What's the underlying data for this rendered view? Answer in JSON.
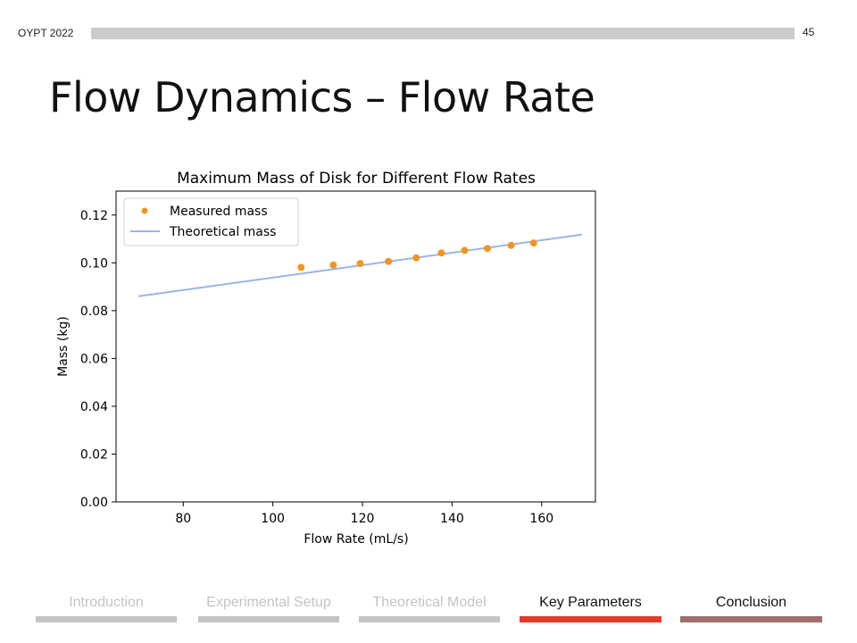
{
  "header": {
    "org": "OYPT 2022",
    "slide_number": "45"
  },
  "title": "Flow Dynamics – Flow Rate",
  "chart_data": {
    "type": "scatter",
    "title": "Maximum Mass of Disk for Different Flow Rates",
    "xlabel": "Flow Rate (mL/s)",
    "ylabel": "Mass (kg)",
    "xlim": [
      65,
      172
    ],
    "ylim": [
      0.0,
      0.13
    ],
    "xticks": [
      80,
      100,
      120,
      140,
      160
    ],
    "xtick_labels": [
      "80",
      "100",
      "120",
      "140",
      "160"
    ],
    "yticks": [
      0.0,
      0.02,
      0.04,
      0.06,
      0.08,
      0.1,
      0.12
    ],
    "ytick_labels": [
      "0.00",
      "0.02",
      "0.04",
      "0.06",
      "0.08",
      "0.10",
      "0.12"
    ],
    "legend_position": "top-left",
    "series": [
      {
        "name": "Measured mass",
        "kind": "scatter",
        "color": "#f0961e",
        "x": [
          106.3,
          113.5,
          119.5,
          125.8,
          132.0,
          137.6,
          142.8,
          147.9,
          153.2,
          158.2
        ],
        "y": [
          0.0981,
          0.0991,
          0.0997,
          0.1006,
          0.1021,
          0.1041,
          0.1052,
          0.106,
          0.1073,
          0.1083
        ]
      },
      {
        "name": "Theoretical mass",
        "kind": "line",
        "color": "#9ab5e6",
        "x": [
          70,
          169
        ],
        "y": [
          0.086,
          0.1118
        ]
      }
    ]
  },
  "nav": [
    {
      "label": "Introduction",
      "state": "past"
    },
    {
      "label": "Experimental Setup",
      "state": "past"
    },
    {
      "label": "Theoretical Model",
      "state": "past"
    },
    {
      "label": "Key Parameters",
      "state": "current"
    },
    {
      "label": "Conclusion",
      "state": "future"
    }
  ]
}
